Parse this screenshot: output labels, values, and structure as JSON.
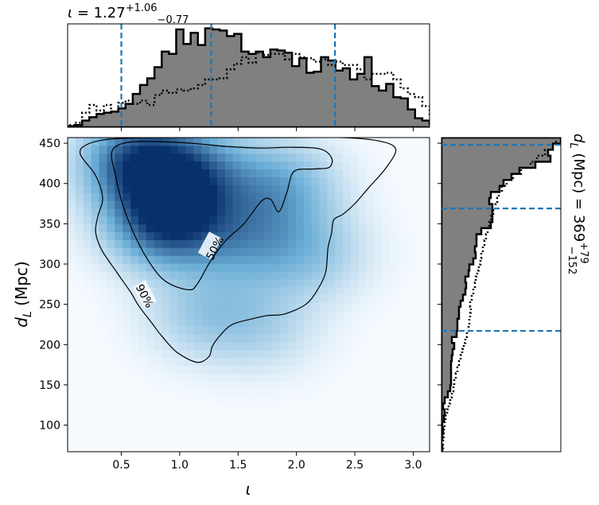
{
  "chart_data": {
    "type": "heatmap",
    "title_top": {
      "symbol": "ι",
      "eq": " = 1.27",
      "sup": "+1.06",
      "sub": "−0.77"
    },
    "title_right": {
      "symbol": "d",
      "sub_sym": "L",
      "unit": " (Mpc) = 369",
      "sup": "+79",
      "sub": "−152"
    },
    "xlabel": "ι",
    "ylabel_symbol": "d",
    "ylabel_sub": "L",
    "ylabel_unit": " (Mpc)",
    "xlim": [
      0.04,
      3.14
    ],
    "ylim": [
      67,
      457
    ],
    "xticks": [
      0.5,
      1.0,
      1.5,
      2.0,
      2.5,
      3.0
    ],
    "xtick_labels": [
      "0.5",
      "1.0",
      "1.5",
      "2.0",
      "2.5",
      "3.0"
    ],
    "yticks": [
      100,
      150,
      200,
      250,
      300,
      350,
      400,
      450
    ],
    "ytick_labels": [
      "100",
      "150",
      "200",
      "250",
      "300",
      "350",
      "400",
      "450"
    ],
    "contour_labels": [
      "50%",
      "90%"
    ],
    "x_quantiles": [
      0.5,
      1.27,
      2.33
    ],
    "y_quantiles": [
      217,
      369,
      448
    ],
    "colors": {
      "hist_fill": "#808080",
      "quantile": "#1f77b4",
      "density_low": "#f7fbff",
      "density_high": "#08306b"
    },
    "density_peaks": [
      {
        "x": 0.9,
        "y": 355,
        "w": 1.0
      },
      {
        "x": 0.68,
        "y": 426,
        "w": 0.95
      },
      {
        "x": 1.15,
        "y": 410,
        "w": 0.55
      },
      {
        "x": 1.55,
        "y": 330,
        "w": 0.4
      },
      {
        "x": 1.85,
        "y": 395,
        "w": 0.45
      },
      {
        "x": 2.1,
        "y": 315,
        "w": 0.3
      },
      {
        "x": 1.2,
        "y": 240,
        "w": 0.25
      },
      {
        "x": 1.7,
        "y": 225,
        "w": 0.2
      }
    ],
    "contour_50": [
      [
        0.42,
        440
      ],
      [
        0.55,
        451
      ],
      [
        0.8,
        452
      ],
      [
        1.1,
        450
      ],
      [
        1.4,
        446
      ],
      [
        1.7,
        444
      ],
      [
        1.95,
        445
      ],
      [
        2.2,
        443
      ],
      [
        2.3,
        432
      ],
      [
        2.28,
        420
      ],
      [
        2.15,
        418
      ],
      [
        1.98,
        415
      ],
      [
        1.92,
        390
      ],
      [
        1.85,
        365
      ],
      [
        1.78,
        380
      ],
      [
        1.7,
        378
      ],
      [
        1.55,
        350
      ],
      [
        1.4,
        330
      ],
      [
        1.27,
        305
      ],
      [
        1.15,
        275
      ],
      [
        1.08,
        268
      ],
      [
        0.92,
        275
      ],
      [
        0.8,
        290
      ],
      [
        0.65,
        325
      ],
      [
        0.52,
        370
      ],
      [
        0.45,
        410
      ],
      [
        0.42,
        440
      ]
    ],
    "contour_90": [
      [
        0.15,
        436
      ],
      [
        0.2,
        448
      ],
      [
        0.4,
        455
      ],
      [
        0.8,
        457
      ],
      [
        1.5,
        457
      ],
      [
        2.0,
        457
      ],
      [
        2.4,
        457
      ],
      [
        2.7,
        453
      ],
      [
        2.85,
        443
      ],
      [
        2.77,
        420
      ],
      [
        2.62,
        395
      ],
      [
        2.5,
        375
      ],
      [
        2.4,
        362
      ],
      [
        2.32,
        355
      ],
      [
        2.3,
        338
      ],
      [
        2.27,
        320
      ],
      [
        2.25,
        290
      ],
      [
        2.18,
        268
      ],
      [
        2.08,
        250
      ],
      [
        1.9,
        238
      ],
      [
        1.75,
        236
      ],
      [
        1.62,
        232
      ],
      [
        1.45,
        225
      ],
      [
        1.35,
        212
      ],
      [
        1.28,
        198
      ],
      [
        1.25,
        185
      ],
      [
        1.15,
        178
      ],
      [
        0.98,
        190
      ],
      [
        0.85,
        210
      ],
      [
        0.76,
        227
      ],
      [
        0.65,
        248
      ],
      [
        0.58,
        265
      ],
      [
        0.46,
        290
      ],
      [
        0.33,
        318
      ],
      [
        0.28,
        340
      ],
      [
        0.3,
        360
      ],
      [
        0.34,
        382
      ],
      [
        0.28,
        410
      ],
      [
        0.15,
        436
      ]
    ],
    "hist_x": {
      "edges_start": 0.04,
      "bin_width": 0.062,
      "post": [
        1,
        2,
        6,
        9,
        12,
        13,
        14,
        17,
        21,
        30,
        38,
        44,
        54,
        68,
        66,
        88,
        75,
        85,
        74,
        89,
        88,
        87,
        82,
        84,
        68,
        66,
        68,
        63,
        70,
        69,
        67,
        55,
        62,
        49,
        50,
        63,
        60,
        51,
        53,
        43,
        48,
        63,
        37,
        33,
        39,
        27,
        26,
        16,
        8,
        6,
        3,
        3
      ],
      "prior": [
        2,
        4,
        13,
        20,
        15,
        20,
        14,
        22,
        24,
        21,
        24,
        20,
        29,
        33,
        31,
        34,
        33,
        35,
        38,
        43,
        43,
        44,
        52,
        57,
        63,
        58,
        67,
        65,
        66,
        66,
        61,
        66,
        63,
        62,
        59,
        61,
        56,
        59,
        56,
        56,
        52,
        43,
        48,
        48,
        49,
        43,
        35,
        30,
        27,
        19,
        10,
        5
      ]
    },
    "hist_y": {
      "edges_start": 67,
      "bin_height": 7.5,
      "post": [
        1,
        0,
        1,
        2,
        1,
        3,
        4,
        2,
        4,
        8,
        11,
        12,
        12,
        12,
        12,
        13,
        14,
        16,
        13,
        19,
        20,
        20,
        22,
        22,
        24,
        27,
        30,
        31,
        30,
        34,
        35,
        40,
        43,
        42,
        44,
        44,
        50,
        62,
        64,
        64,
        64,
        60,
        62,
        73,
        78,
        88,
        98,
        118,
        137,
        134,
        140,
        150
      ],
      "prior": [
        2,
        2,
        3,
        3,
        4,
        5,
        7,
        9,
        11,
        13,
        15,
        16,
        18,
        20,
        22,
        24,
        26,
        28,
        30,
        32,
        34,
        35,
        36,
        37,
        36,
        38,
        40,
        42,
        43,
        45,
        47,
        49,
        50,
        52,
        54,
        56,
        58,
        60,
        62,
        65,
        68,
        70,
        72,
        76,
        82,
        90,
        100,
        112,
        120,
        130,
        140,
        144
      ]
    }
  }
}
